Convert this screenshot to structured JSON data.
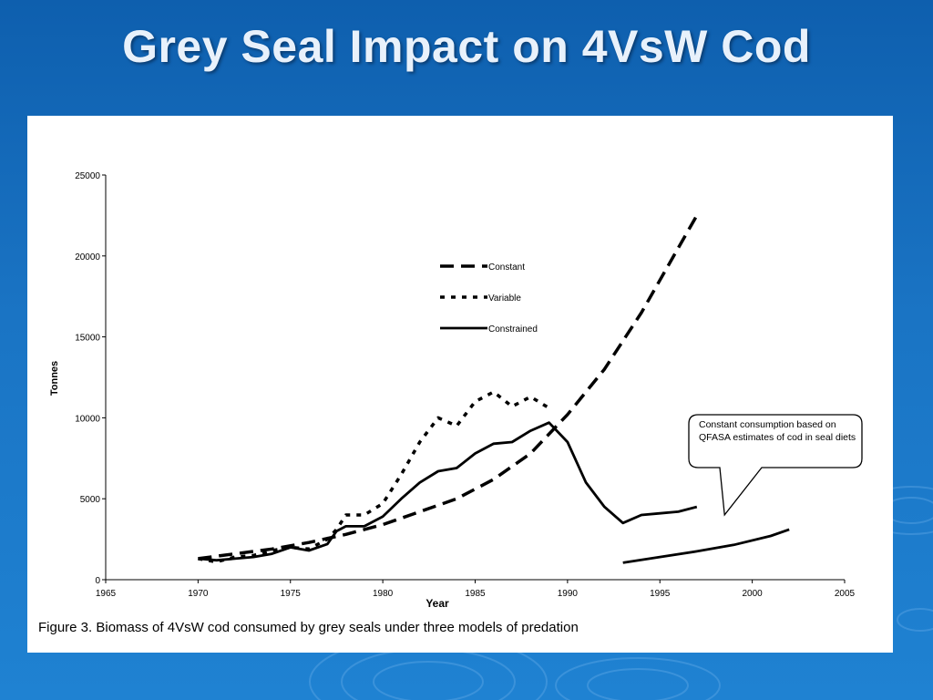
{
  "slide": {
    "title": "Grey Seal Impact on 4VsW Cod"
  },
  "chart_data": {
    "type": "line",
    "title": "",
    "caption": "Figure 3. Biomass of 4VsW cod consumed by grey seals under three models of predation",
    "xlabel": "Year",
    "ylabel": "Tonnes",
    "xlim": [
      1965,
      2005
    ],
    "ylim": [
      0,
      25000
    ],
    "xticks": [
      1965,
      1970,
      1975,
      1980,
      1985,
      1990,
      1995,
      2000,
      2005
    ],
    "yticks": [
      0,
      5000,
      10000,
      15000,
      20000,
      25000
    ],
    "grid": false,
    "legend_position": "upper-center",
    "series": [
      {
        "name": "Constant",
        "style": "dashed",
        "x": [
          1970,
          1972,
          1974,
          1976,
          1978,
          1980,
          1982,
          1984,
          1986,
          1988,
          1990,
          1992,
          1994,
          1996,
          1997
        ],
        "y": [
          1300,
          1600,
          1900,
          2300,
          2800,
          3400,
          4200,
          5000,
          6200,
          7800,
          10200,
          13000,
          16500,
          20500,
          22500
        ]
      },
      {
        "name": "Variable",
        "style": "dotted",
        "x": [
          1970,
          1971,
          1972,
          1973,
          1974,
          1975,
          1976,
          1977,
          1977.5,
          1978,
          1979,
          1980,
          1981,
          1982,
          1983,
          1984,
          1985,
          1986,
          1987,
          1988,
          1989
        ],
        "y": [
          1300,
          1100,
          1400,
          1500,
          1800,
          2000,
          1900,
          2500,
          3100,
          4000,
          4000,
          4700,
          6500,
          8500,
          10000,
          9500,
          11000,
          11600,
          10700,
          11300,
          10600
        ]
      },
      {
        "name": "Constrained",
        "style": "solid",
        "x": [
          1970,
          1971,
          1972,
          1973,
          1974,
          1975,
          1976,
          1977,
          1977.5,
          1978,
          1979,
          1980,
          1981,
          1982,
          1983,
          1984,
          1985,
          1986,
          1987,
          1988,
          1989,
          1990,
          1991,
          1992,
          1993,
          1994,
          1995,
          1996,
          1997
        ],
        "y": [
          1300,
          1200,
          1300,
          1400,
          1600,
          2000,
          1800,
          2200,
          3000,
          3300,
          3300,
          3900,
          5000,
          6000,
          6700,
          6900,
          7800,
          8400,
          8500,
          9200,
          9700,
          8500,
          6000,
          4500,
          3500,
          4000,
          4100,
          4200,
          4500
        ]
      },
      {
        "name": "",
        "style": "solid",
        "x": [
          1993,
          1995,
          1997,
          1999,
          2001,
          2002
        ],
        "y": [
          1050,
          1400,
          1750,
          2150,
          2700,
          3100
        ]
      }
    ],
    "annotations": [
      {
        "text": "Constant consumption based on QFASA estimates of cod in seal diets",
        "points_to": [
          1998.5,
          4000
        ]
      }
    ]
  }
}
